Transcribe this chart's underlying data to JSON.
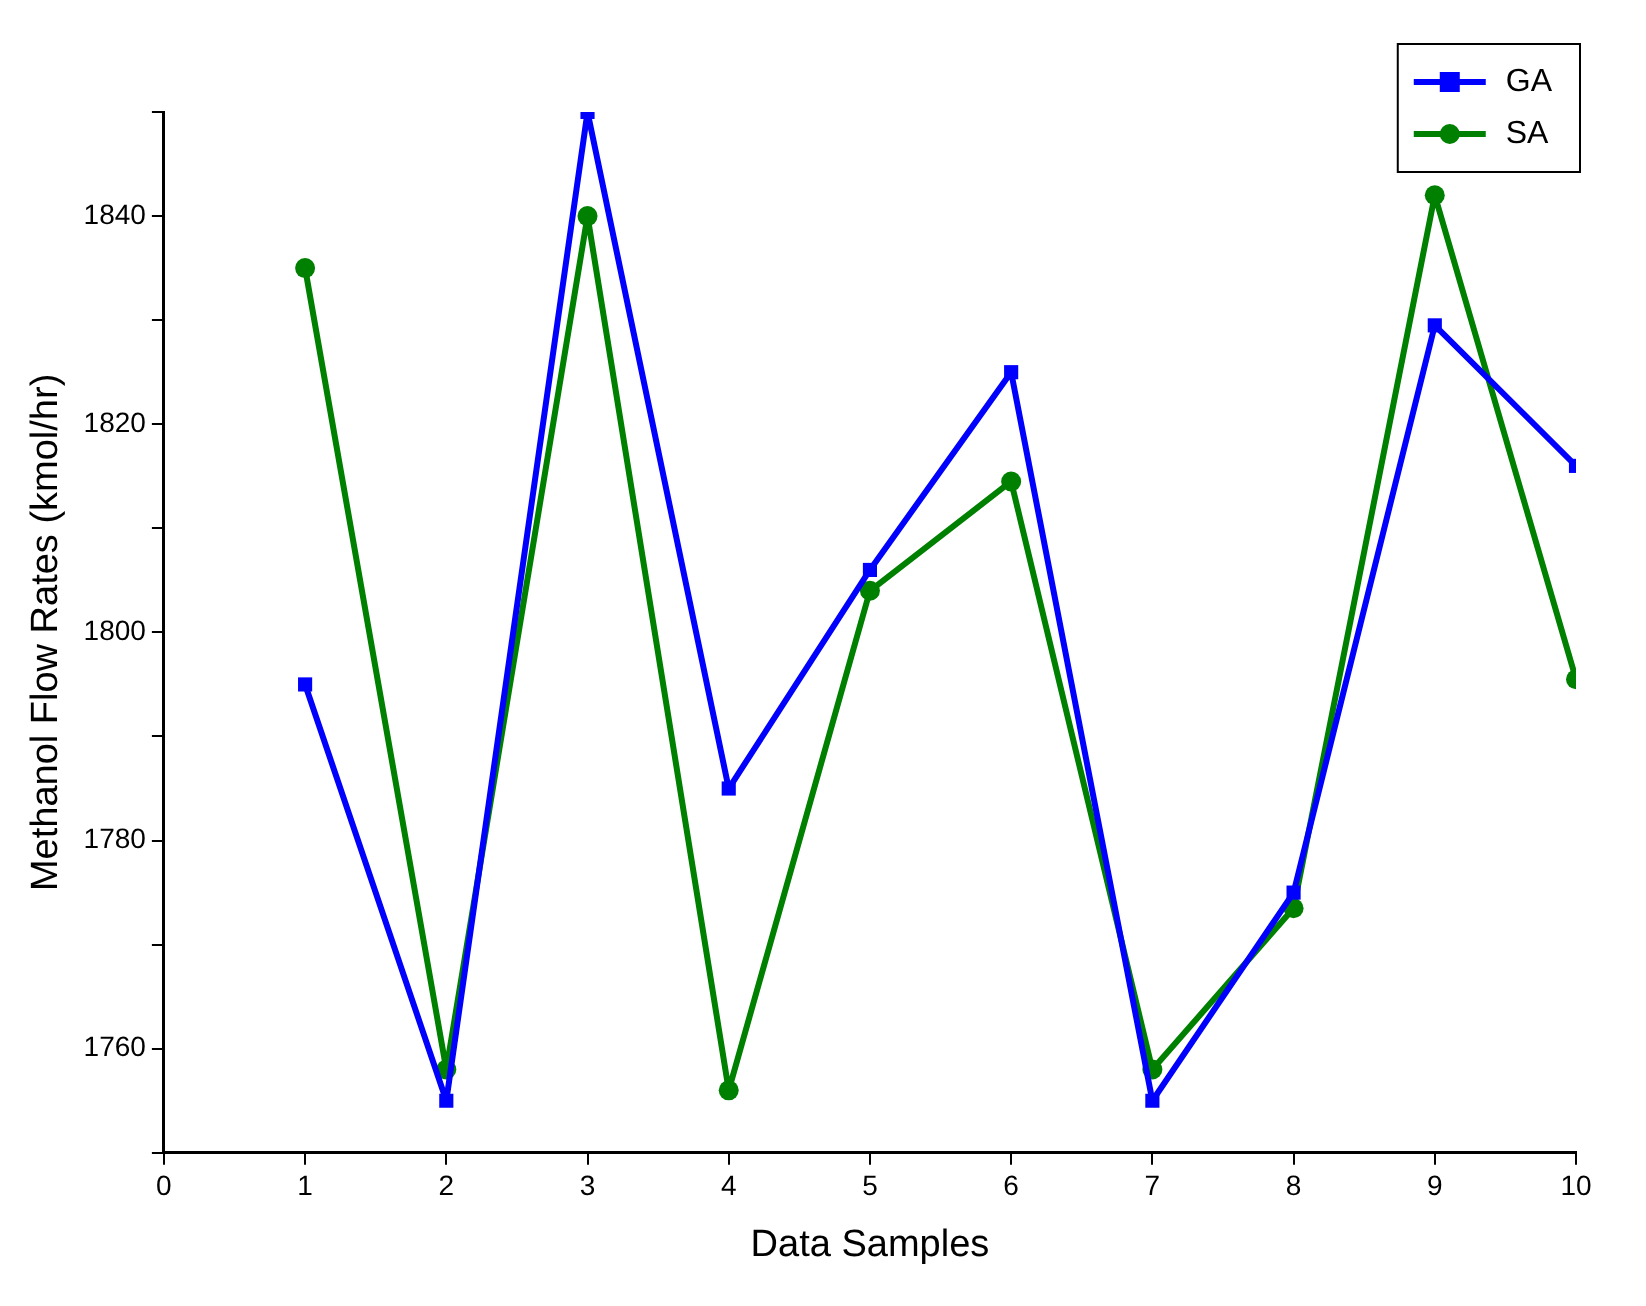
{
  "chart_data": {
    "type": "line",
    "xlabel": "Data Samples",
    "ylabel": "Methanol Flow Rates (kmol/hr)",
    "x": [
      1,
      2,
      3,
      4,
      5,
      6,
      7,
      8,
      9,
      10
    ],
    "series": [
      {
        "name": "GA",
        "color": "#0000ff",
        "marker": "square",
        "values": [
          1795,
          1755,
          1850,
          1785,
          1806,
          1825,
          1755,
          1775,
          1829.5,
          1816
        ]
      },
      {
        "name": "SA",
        "color": "#008000",
        "marker": "circle",
        "values": [
          1835,
          1758,
          1840,
          1756,
          1804,
          1814.5,
          1758,
          1773.5,
          1842,
          1795.5
        ]
      }
    ],
    "xlim": [
      0,
      10
    ],
    "xticks": [
      0,
      1,
      2,
      3,
      4,
      5,
      6,
      7,
      8,
      9,
      10
    ],
    "ylim": [
      1750,
      1850
    ],
    "yticks": [
      {
        "value": 1750,
        "label": null
      },
      1760,
      {
        "value": 1770,
        "label": null
      },
      1780,
      {
        "value": 1790,
        "label": null
      },
      1800,
      {
        "value": 1810,
        "label": null
      },
      1820,
      {
        "value": 1830,
        "label": null
      },
      1840,
      {
        "value": 1850,
        "label": null
      }
    ],
    "grid": false,
    "legend": "top right",
    "line_style": "solid"
  }
}
